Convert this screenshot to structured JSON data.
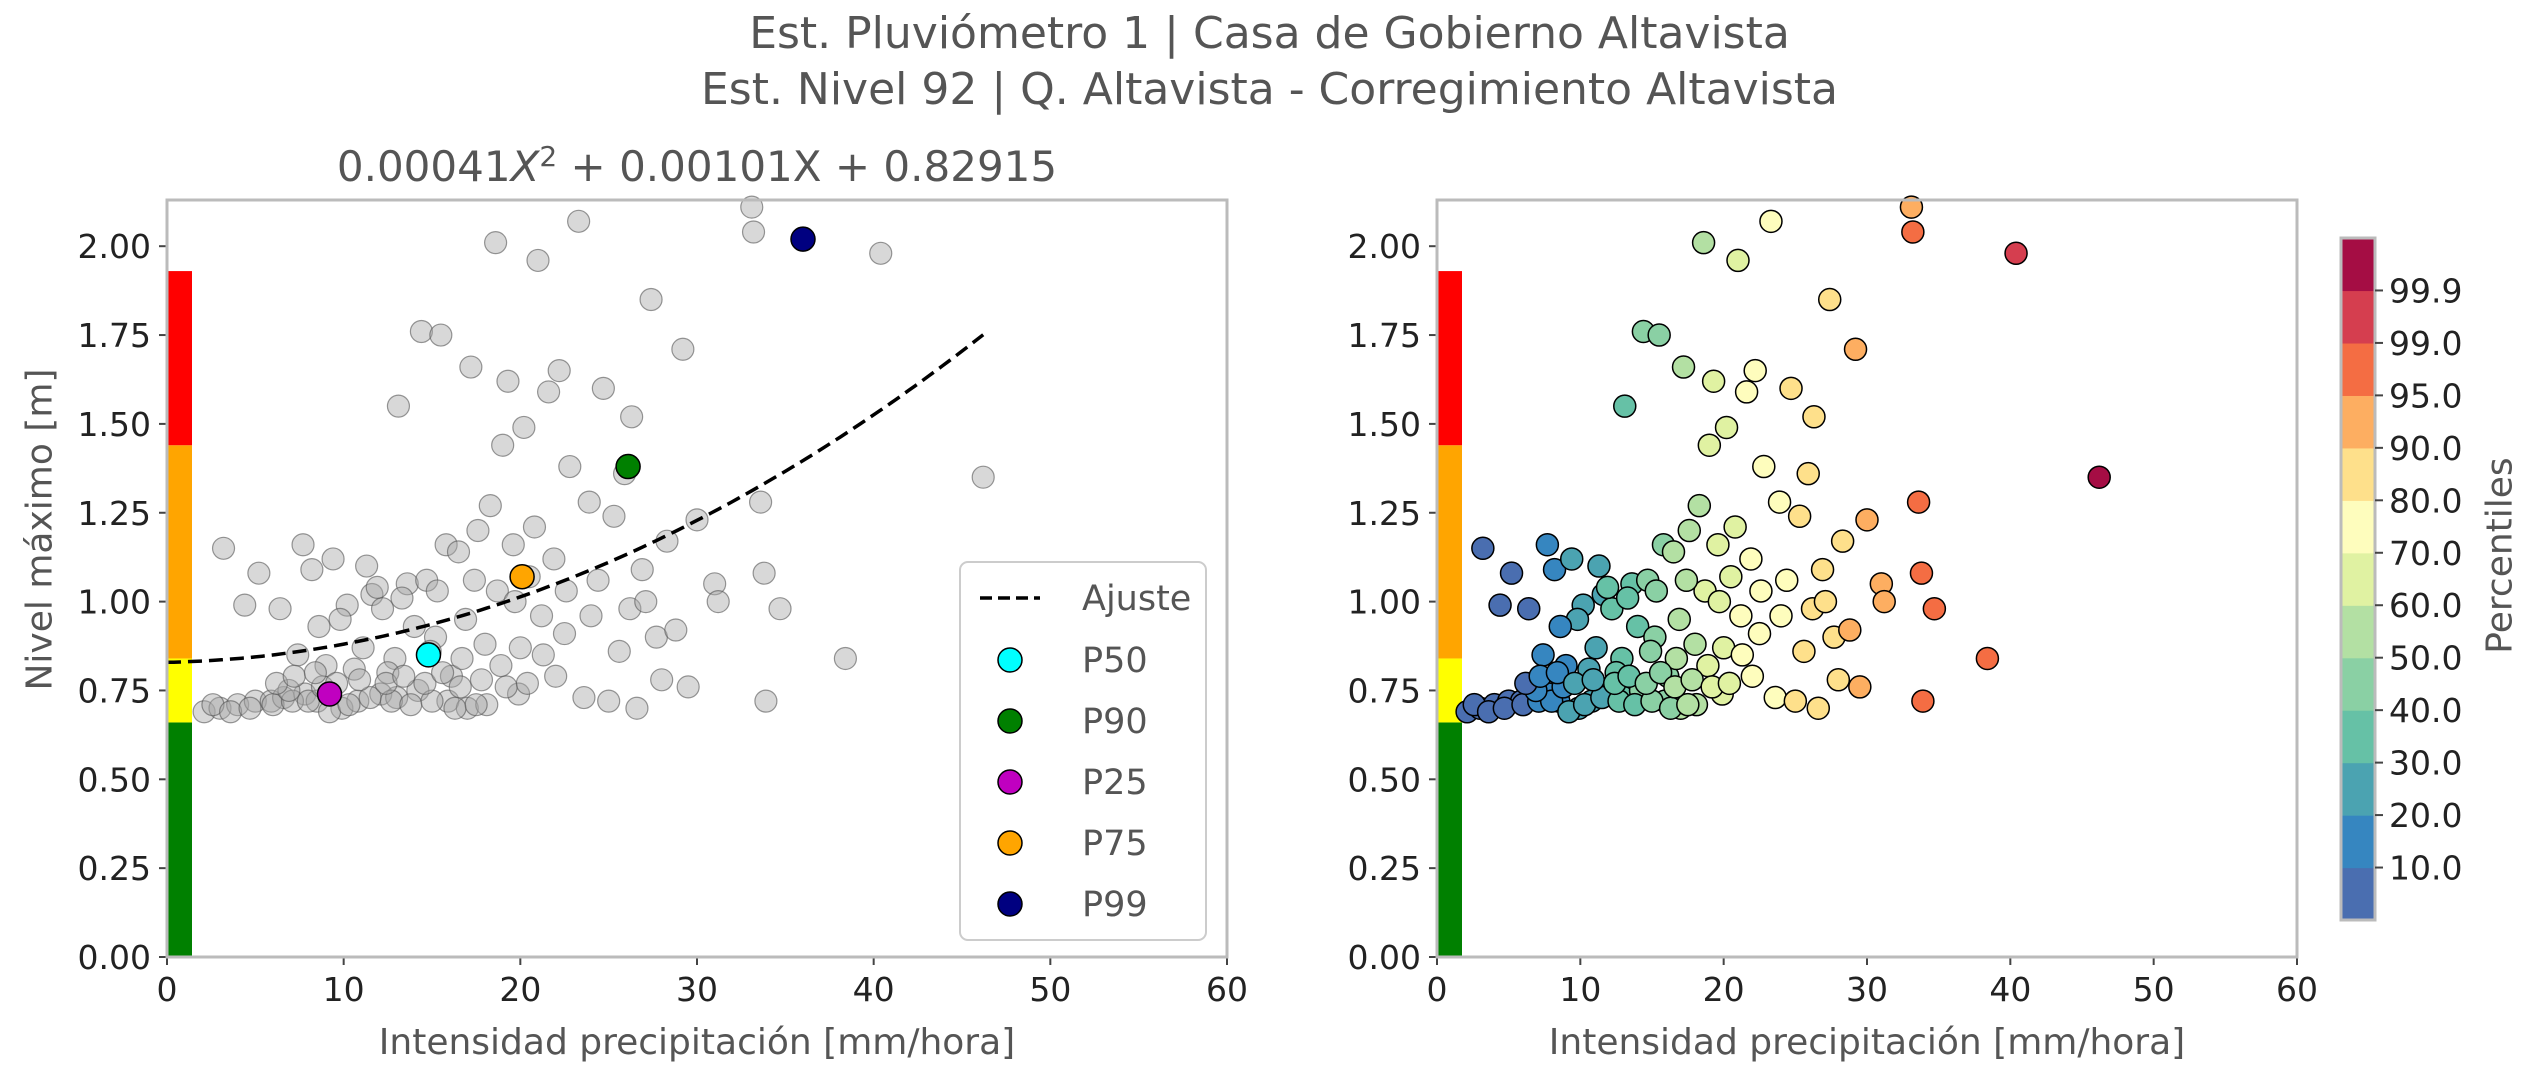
{
  "suptitle": {
    "line1": "Est. Pluviómetro 1 | Casa de Gobierno Altavista",
    "line2": "Est. Nivel 92 | Q. Altavista - Corregimiento Altavista"
  },
  "chart_data": [
    {
      "type": "scatter",
      "panel": "left",
      "title_prefix": "0.00041",
      "title_var": "X",
      "title_exp": "2",
      "title_suffix": " + 0.00101X + 0.82915",
      "xlabel": "Intensidad precipitación [mm/hora]",
      "ylabel": "Nivel máximo [m]",
      "xlim": [
        0,
        60
      ],
      "ylim": [
        0,
        2.13
      ],
      "xticks": [
        "0",
        "10",
        "20",
        "30",
        "40",
        "50",
        "60"
      ],
      "yticks": [
        "0.00",
        "0.25",
        "0.50",
        "0.75",
        "1.00",
        "1.25",
        "1.50",
        "1.75",
        "2.00"
      ],
      "threshold_bar": [
        {
          "from": 0.0,
          "to": 0.66,
          "color": "#008000"
        },
        {
          "from": 0.66,
          "to": 0.84,
          "color": "#ffff00"
        },
        {
          "from": 0.84,
          "to": 1.44,
          "color": "#ffa500"
        },
        {
          "from": 1.44,
          "to": 1.93,
          "color": "#ff0000"
        }
      ],
      "fit": {
        "a": 0.00041,
        "b": 0.00101,
        "c": 0.82915,
        "x_range": [
          0,
          46.2
        ],
        "color": "#000000"
      },
      "points_color": "#a9a9a9",
      "points": [
        [
          2.1,
          0.69
        ],
        [
          3.0,
          0.7
        ],
        [
          4.0,
          0.71
        ],
        [
          5.0,
          0.72
        ],
        [
          5.9,
          0.72
        ],
        [
          6.6,
          0.73
        ],
        [
          7.8,
          0.74
        ],
        [
          8.5,
          0.72
        ],
        [
          9.9,
          0.7
        ],
        [
          10.8,
          0.72
        ],
        [
          12.1,
          0.74
        ],
        [
          13.0,
          0.73
        ],
        [
          14.2,
          0.75
        ],
        [
          15.9,
          0.72
        ],
        [
          17.0,
          0.7
        ],
        [
          18.1,
          0.71
        ],
        [
          19.9,
          0.74
        ],
        [
          2.6,
          0.71
        ],
        [
          3.6,
          0.69
        ],
        [
          4.7,
          0.7
        ],
        [
          6.0,
          0.71
        ],
        [
          7.1,
          0.72
        ],
        [
          8.0,
          0.72
        ],
        [
          9.2,
          0.69
        ],
        [
          10.3,
          0.71
        ],
        [
          11.5,
          0.73
        ],
        [
          12.7,
          0.72
        ],
        [
          13.8,
          0.71
        ],
        [
          15.0,
          0.72
        ],
        [
          16.3,
          0.7
        ],
        [
          17.5,
          0.71
        ],
        [
          3.2,
          1.15
        ],
        [
          5.2,
          1.08
        ],
        [
          6.9,
          0.75
        ],
        [
          7.7,
          1.16
        ],
        [
          8.2,
          1.09
        ],
        [
          9.0,
          0.82
        ],
        [
          9.4,
          1.12
        ],
        [
          10.2,
          0.99
        ],
        [
          11.1,
          0.87
        ],
        [
          11.6,
          1.02
        ],
        [
          12.2,
          0.98
        ],
        [
          12.9,
          0.84
        ],
        [
          13.1,
          1.55
        ],
        [
          13.6,
          1.05
        ],
        [
          14.0,
          0.93
        ],
        [
          14.4,
          1.76
        ],
        [
          14.7,
          1.06
        ],
        [
          15.2,
          0.9
        ],
        [
          15.5,
          1.75
        ],
        [
          15.8,
          1.16
        ],
        [
          16.1,
          0.79
        ],
        [
          16.5,
          1.14
        ],
        [
          16.9,
          0.95
        ],
        [
          17.2,
          1.66
        ],
        [
          17.6,
          1.2
        ],
        [
          18.0,
          0.88
        ],
        [
          18.3,
          1.27
        ],
        [
          18.7,
          1.03
        ],
        [
          19.0,
          1.44
        ],
        [
          19.3,
          1.62
        ],
        [
          19.6,
          1.16
        ],
        [
          20.0,
          0.87
        ],
        [
          20.2,
          1.49
        ],
        [
          20.5,
          1.07
        ],
        [
          20.8,
          1.21
        ],
        [
          21.0,
          1.96
        ],
        [
          21.3,
          0.85
        ],
        [
          21.6,
          1.59
        ],
        [
          21.9,
          1.12
        ],
        [
          22.2,
          1.65
        ],
        [
          22.5,
          0.91
        ],
        [
          22.8,
          1.38
        ],
        [
          23.3,
          2.07
        ],
        [
          23.6,
          0.73
        ],
        [
          23.9,
          1.28
        ],
        [
          24.4,
          1.06
        ],
        [
          24.7,
          1.6
        ],
        [
          25.0,
          0.72
        ],
        [
          25.3,
          1.24
        ],
        [
          25.6,
          0.86
        ],
        [
          25.9,
          1.36
        ],
        [
          26.3,
          1.52
        ],
        [
          26.6,
          0.7
        ],
        [
          26.9,
          1.09
        ],
        [
          27.4,
          1.85
        ],
        [
          27.7,
          0.9
        ],
        [
          28.0,
          0.78
        ],
        [
          28.3,
          1.17
        ],
        [
          29.2,
          1.71
        ],
        [
          29.5,
          0.76
        ],
        [
          30.0,
          1.23
        ],
        [
          31.0,
          1.05
        ],
        [
          31.2,
          1.0
        ],
        [
          33.1,
          2.11
        ],
        [
          33.2,
          2.04
        ],
        [
          33.6,
          1.28
        ],
        [
          33.8,
          1.08
        ],
        [
          33.9,
          0.72
        ],
        [
          34.7,
          0.98
        ],
        [
          38.4,
          0.84
        ],
        [
          40.4,
          1.98
        ],
        [
          46.2,
          1.35
        ],
        [
          18.6,
          2.01
        ],
        [
          9.8,
          0.95
        ],
        [
          11.9,
          1.04
        ],
        [
          7.4,
          0.85
        ],
        [
          8.8,
          0.76
        ],
        [
          10.6,
          0.81
        ],
        [
          12.5,
          0.8
        ],
        [
          14.9,
          0.86
        ],
        [
          16.7,
          0.84
        ],
        [
          18.9,
          0.82
        ],
        [
          21.2,
          0.96
        ],
        [
          6.2,
          0.77
        ],
        [
          7.2,
          0.79
        ],
        [
          8.4,
          0.8
        ],
        [
          9.6,
          0.77
        ],
        [
          10.9,
          0.78
        ],
        [
          12.4,
          0.77
        ],
        [
          13.4,
          0.79
        ],
        [
          14.6,
          0.77
        ],
        [
          15.6,
          0.8
        ],
        [
          16.6,
          0.76
        ],
        [
          17.8,
          0.78
        ],
        [
          19.2,
          0.76
        ],
        [
          20.4,
          0.77
        ],
        [
          22.0,
          0.79
        ],
        [
          4.4,
          0.99
        ],
        [
          6.4,
          0.98
        ],
        [
          8.6,
          0.93
        ],
        [
          11.3,
          1.1
        ],
        [
          13.3,
          1.01
        ],
        [
          15.3,
          1.03
        ],
        [
          17.4,
          1.06
        ],
        [
          19.7,
          1.0
        ],
        [
          22.6,
          1.03
        ],
        [
          24.0,
          0.96
        ],
        [
          26.2,
          0.98
        ],
        [
          27.1,
          1.0
        ],
        [
          28.8,
          0.92
        ]
      ],
      "markers": [
        {
          "name": "P50",
          "x": 14.8,
          "y": 0.85,
          "color": "#00ffff"
        },
        {
          "name": "P90",
          "x": 26.1,
          "y": 1.38,
          "color": "#008000"
        },
        {
          "name": "P25",
          "x": 9.2,
          "y": 0.74,
          "color": "#c000c0"
        },
        {
          "name": "P75",
          "x": 20.1,
          "y": 1.07,
          "color": "#ffa500"
        },
        {
          "name": "P99",
          "x": 36.0,
          "y": 2.02,
          "color": "#000080"
        }
      ],
      "legend": {
        "position": "lower right",
        "fit_label": "Ajuste",
        "entries": [
          "P50",
          "P90",
          "P25",
          "P75",
          "P99"
        ]
      }
    },
    {
      "type": "scatter",
      "panel": "right",
      "xlabel": "Intensidad precipitación [mm/hora]",
      "xlim": [
        0,
        60
      ],
      "ylim": [
        0,
        2.13
      ],
      "xticks": [
        "0",
        "10",
        "20",
        "30",
        "40",
        "50",
        "60"
      ],
      "yticks": [
        "0.00",
        "0.25",
        "0.50",
        "0.75",
        "1.00",
        "1.25",
        "1.50",
        "1.75",
        "2.00"
      ],
      "threshold_bar": [
        {
          "from": 0.0,
          "to": 0.66,
          "color": "#008000"
        },
        {
          "from": 0.66,
          "to": 0.84,
          "color": "#ffff00"
        },
        {
          "from": 0.84,
          "to": 1.44,
          "color": "#ffa500"
        },
        {
          "from": 1.44,
          "to": 1.93,
          "color": "#ff0000"
        }
      ],
      "color_by": "precipitation intensity percentile",
      "colorbar": {
        "label": "Percentiles",
        "ticks": [
          "10.0",
          "20.0",
          "30.0",
          "40.0",
          "50.0",
          "60.0",
          "70.0",
          "80.0",
          "90.0",
          "95.0",
          "99.0",
          "99.9"
        ],
        "colors": [
          "#4a6eb0",
          "#3686c0",
          "#4ba3b1",
          "#66c1a6",
          "#8ad0a4",
          "#b3e0a3",
          "#e0f2a2",
          "#fefdbd",
          "#fee08b",
          "#fdae61",
          "#f46d43",
          "#d53e4f",
          "#a50d44"
        ]
      }
    }
  ]
}
